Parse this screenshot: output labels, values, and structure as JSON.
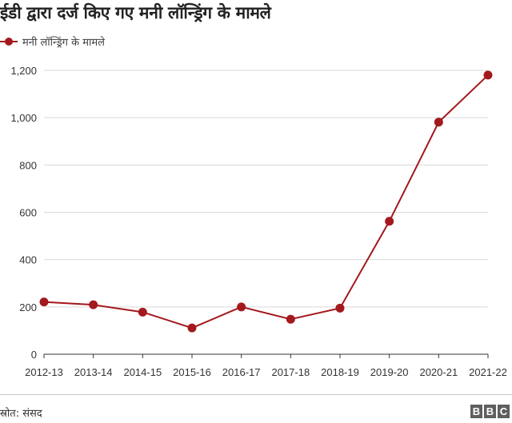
{
  "chart_data": {
    "type": "line",
    "title": "ईडी द्वारा दर्ज किए गए मनी लॉन्ड्रिंग के मामले",
    "xlabel": "",
    "ylabel": "",
    "categories": [
      "2012-13",
      "2013-14",
      "2014-15",
      "2015-16",
      "2016-17",
      "2017-18",
      "2018-19",
      "2019-20",
      "2020-21",
      "2021-22"
    ],
    "series": [
      {
        "name": "मनी लॉन्ड्रिंग के मामले",
        "values": [
          221,
          209,
          178,
          111,
          200,
          148,
          195,
          562,
          981,
          1180
        ]
      }
    ],
    "ylim": [
      0,
      1200
    ],
    "yticks": [
      0,
      200,
      400,
      600,
      800,
      1000,
      1200
    ],
    "ytick_labels": [
      "0",
      "200",
      "400",
      "600",
      "800",
      "1,000",
      "1,200"
    ],
    "grid": true,
    "legend_position": "top-left",
    "colors": {
      "series": "#a3191d",
      "grid": "#d9d9d9",
      "axis": "#333333"
    }
  },
  "footer": {
    "source": "स्रोत: संसद",
    "logo_letters": [
      "B",
      "B",
      "C"
    ]
  }
}
